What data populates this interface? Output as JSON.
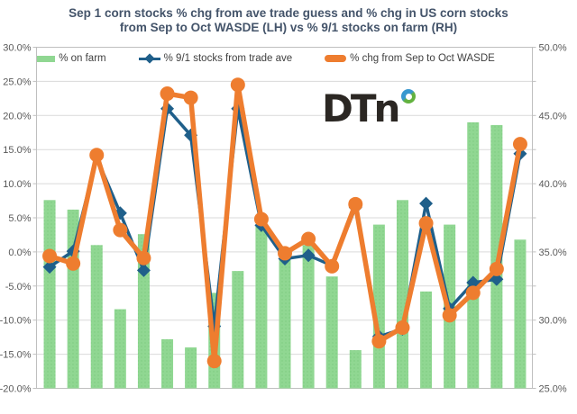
{
  "title": {
    "line1": "Sep 1 corn stocks % chg from ave trade guess and % chg in  US corn stocks",
    "line2": "from Sep to Oct WASDE (LH) vs % 9/1 stocks on farm (RH)"
  },
  "legend": [
    {
      "label": "% on farm",
      "swatch": "bar-swatch",
      "color": "#90d792"
    },
    {
      "label": "% 9/1 stocks from trade ave",
      "swatch": "line-diamond-swatch",
      "color": "#1f5f8a"
    },
    {
      "label": "% chg from Sep to Oct WASDE",
      "swatch": "thick-line-swatch",
      "color": "#ee7d2f"
    }
  ],
  "logo": {
    "text": "DTn"
  },
  "colors": {
    "bar_green": "#90d792",
    "bar_dot": "#6fbf77",
    "line_blue": "#1f5f8a",
    "line_orange": "#ee7d2f",
    "gridline": "#d9d9d9",
    "plot_border": "#bfbfbf",
    "axis_text": "#595959",
    "title_text": "#44546a"
  },
  "chart_data": {
    "type": "combo-bar-line",
    "x_count": 21,
    "x_labels_visible": false,
    "grid": true,
    "legend_position": "top-inside",
    "left_axis": {
      "min": -20,
      "max": 30,
      "tick_step": 5,
      "format": "0.0%",
      "labels": [
        "30.0%",
        "25.0%",
        "20.0%",
        "15.0%",
        "10.0%",
        "5.0%",
        "0.0%",
        "-5.0%",
        "-10.0%",
        "-15.0%",
        "-20.0%"
      ]
    },
    "right_axis": {
      "min": 25,
      "max": 50,
      "tick_step": 5,
      "minor_tick_step": 2.5,
      "format": "0.0%",
      "labels": [
        "50.0%",
        "45.0%",
        "40.0%",
        "35.0%",
        "30.0%",
        "25.0%"
      ]
    },
    "series": [
      {
        "name": "% on farm",
        "type": "bar",
        "axis": "right",
        "color": "#90d792",
        "values": [
          38.8,
          38.1,
          35.5,
          30.8,
          36.3,
          28.6,
          28.0,
          32.0,
          33.6,
          36.9,
          34.4,
          35.5,
          33.2,
          27.8,
          37.0,
          38.8,
          32.1,
          37.0,
          44.5,
          44.3,
          35.9
        ]
      },
      {
        "name": "% 9/1 stocks from trade ave",
        "type": "line",
        "marker": "diamond",
        "axis": "left",
        "color": "#1f5f8a",
        "values": [
          -2.2,
          0.1,
          13.8,
          5.7,
          -2.7,
          21.0,
          17.1,
          -10.9,
          21.0,
          3.9,
          -1.0,
          -0.5,
          -2.0,
          6.5,
          -12.4,
          -11.3,
          7.1,
          -8.3,
          -4.5,
          -4.0,
          14.4
        ]
      },
      {
        "name": "% chg from Sep to Oct WASDE",
        "type": "line",
        "marker": "circle",
        "axis": "left",
        "color": "#ee7d2f",
        "values": [
          -0.6,
          -1.7,
          14.2,
          3.2,
          -0.9,
          23.2,
          22.6,
          -16.0,
          24.5,
          4.8,
          -0.2,
          1.9,
          -2.1,
          7.0,
          -13.1,
          -11.1,
          4.2,
          -9.3,
          -6.0,
          -2.5,
          15.8
        ]
      }
    ]
  }
}
